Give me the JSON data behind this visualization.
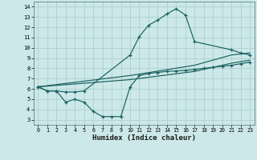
{
  "xlabel": "Humidex (Indice chaleur)",
  "bg_color": "#cce8e8",
  "grid_color": "#a8cccc",
  "line_color": "#1a6060",
  "xlim": [
    -0.5,
    23.5
  ],
  "ylim": [
    2.5,
    14.5
  ],
  "xticks": [
    0,
    1,
    2,
    3,
    4,
    5,
    6,
    7,
    8,
    9,
    10,
    11,
    12,
    13,
    14,
    15,
    16,
    17,
    18,
    19,
    20,
    21,
    22,
    23
  ],
  "yticks": [
    3,
    4,
    5,
    6,
    7,
    8,
    9,
    10,
    11,
    12,
    13,
    14
  ],
  "line1_x": [
    0,
    1,
    2,
    3,
    4,
    5,
    10,
    11,
    12,
    13,
    14,
    15,
    16,
    17,
    21,
    22,
    23
  ],
  "line1_y": [
    6.2,
    5.8,
    5.8,
    5.7,
    5.7,
    5.8,
    9.3,
    11.1,
    12.2,
    12.7,
    13.3,
    13.8,
    13.2,
    10.6,
    9.8,
    9.5,
    9.3
  ],
  "line2_x": [
    0,
    10,
    17,
    21,
    23
  ],
  "line2_y": [
    6.2,
    7.3,
    8.3,
    9.3,
    9.5
  ],
  "line3_x": [
    0,
    10,
    17,
    21,
    23
  ],
  "line3_y": [
    6.2,
    6.9,
    7.7,
    8.5,
    8.8
  ],
  "line4_x": [
    0,
    1,
    2,
    3,
    4,
    5,
    6,
    7,
    8,
    9,
    10,
    11,
    12,
    13,
    14,
    15,
    16,
    17,
    18,
    19,
    20,
    21,
    22,
    23
  ],
  "line4_y": [
    6.2,
    5.8,
    5.8,
    4.7,
    5.0,
    4.7,
    3.8,
    3.3,
    3.3,
    3.3,
    6.2,
    7.3,
    7.5,
    7.6,
    7.7,
    7.75,
    7.8,
    7.9,
    8.0,
    8.1,
    8.2,
    8.3,
    8.45,
    8.6
  ]
}
